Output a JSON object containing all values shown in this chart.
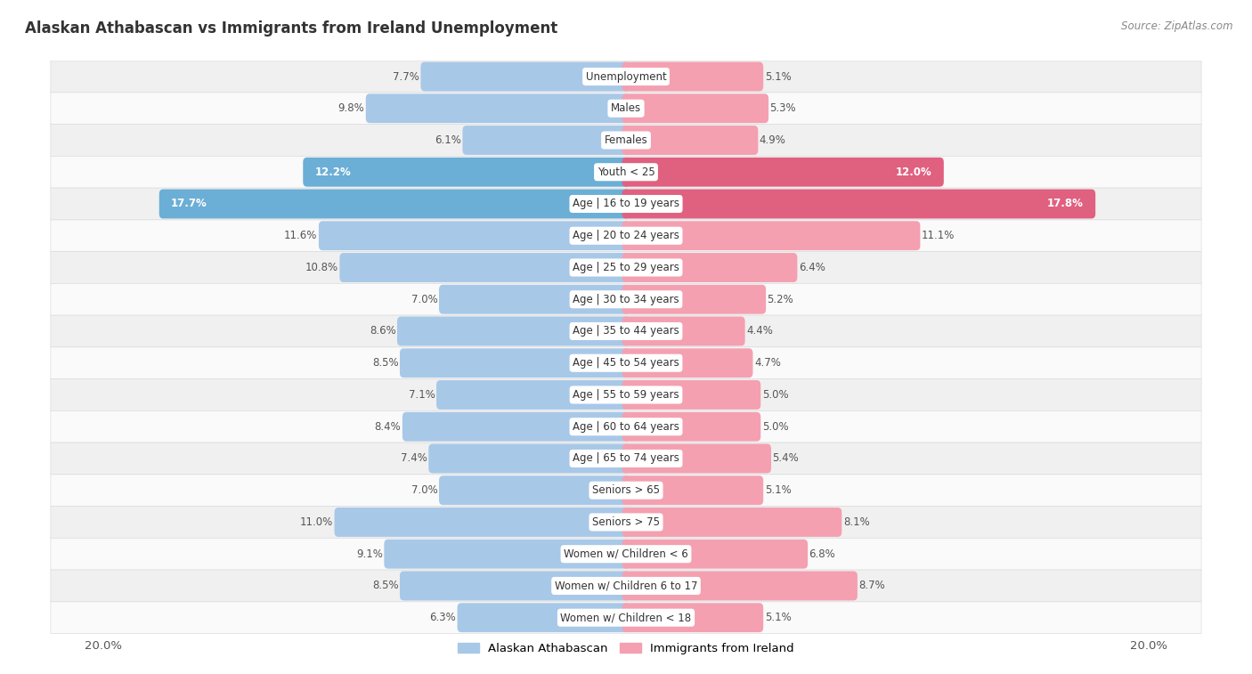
{
  "title": "Alaskan Athabascan vs Immigrants from Ireland Unemployment",
  "source": "Source: ZipAtlas.com",
  "categories": [
    "Unemployment",
    "Males",
    "Females",
    "Youth < 25",
    "Age | 16 to 19 years",
    "Age | 20 to 24 years",
    "Age | 25 to 29 years",
    "Age | 30 to 34 years",
    "Age | 35 to 44 years",
    "Age | 45 to 54 years",
    "Age | 55 to 59 years",
    "Age | 60 to 64 years",
    "Age | 65 to 74 years",
    "Seniors > 65",
    "Seniors > 75",
    "Women w/ Children < 6",
    "Women w/ Children 6 to 17",
    "Women w/ Children < 18"
  ],
  "left_values": [
    7.7,
    9.8,
    6.1,
    12.2,
    17.7,
    11.6,
    10.8,
    7.0,
    8.6,
    8.5,
    7.1,
    8.4,
    7.4,
    7.0,
    11.0,
    9.1,
    8.5,
    6.3
  ],
  "right_values": [
    5.1,
    5.3,
    4.9,
    12.0,
    17.8,
    11.1,
    6.4,
    5.2,
    4.4,
    4.7,
    5.0,
    5.0,
    5.4,
    5.1,
    8.1,
    6.8,
    8.7,
    5.1
  ],
  "left_color_normal": "#A8C8E8",
  "left_color_highlight": "#6BAED6",
  "right_color_normal": "#F4A0B0",
  "right_color_highlight": "#E06080",
  "highlight_rows": [
    3,
    4
  ],
  "row_bg_odd": "#F0F0F0",
  "row_bg_even": "#FAFAFA",
  "max_val": 20.0,
  "left_label": "Alaskan Athabascan",
  "right_label": "Immigrants from Ireland",
  "title_fontsize": 12,
  "source_fontsize": 8.5,
  "bar_height": 0.62,
  "value_fontsize": 8.5,
  "cat_fontsize": 8.5
}
